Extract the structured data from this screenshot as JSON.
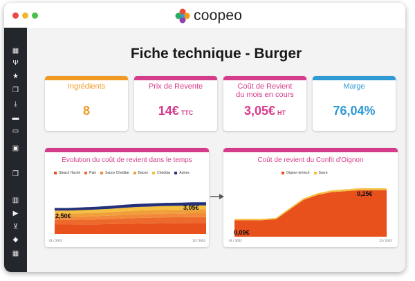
{
  "window": {
    "dots": [
      "#e94b4b",
      "#f0b830",
      "#4cbf4c"
    ]
  },
  "app": {
    "name": "coopeo",
    "logo_colors": [
      "#e74c3c",
      "#f39c12",
      "#8e44ad",
      "#27ae60",
      "#3498db"
    ]
  },
  "sidebar": {
    "items": [
      {
        "icon": "dashboard-icon",
        "glyph": "▦"
      },
      {
        "icon": "cutlery-icon",
        "glyph": "Ψ"
      },
      {
        "icon": "star-icon",
        "glyph": "★"
      },
      {
        "icon": "copy-icon",
        "glyph": "❐"
      },
      {
        "icon": "download-icon",
        "glyph": "⤓"
      },
      {
        "icon": "truck-icon",
        "glyph": "▬"
      },
      {
        "icon": "card-icon",
        "glyph": "▭"
      },
      {
        "icon": "document-icon",
        "glyph": "▣"
      },
      {
        "icon": "duplicate-icon",
        "glyph": "❒"
      },
      {
        "icon": "book-icon",
        "glyph": "▥"
      },
      {
        "icon": "play-icon",
        "glyph": "▶"
      },
      {
        "icon": "cart-icon",
        "glyph": "⊻"
      },
      {
        "icon": "tag-icon",
        "glyph": "◆"
      },
      {
        "icon": "calculator-icon",
        "glyph": "▦"
      }
    ]
  },
  "page": {
    "title": "Fiche technique - Burger"
  },
  "cards": [
    {
      "label": "Ingrédients",
      "value": "8",
      "unit": "",
      "color": "#f09a24"
    },
    {
      "label": "Prix de Revente",
      "value": "14€",
      "unit": "TTC",
      "color": "#d63c8c"
    },
    {
      "label": "Coût de Revient\ndu mois en cours",
      "value": "3,05€",
      "unit": "HT",
      "color": "#d63c8c"
    },
    {
      "label": "Marge",
      "value": "76,04%",
      "unit": "",
      "color": "#2f9ad6"
    }
  ],
  "chart_data": [
    {
      "type": "area",
      "title": "Evolution du coût de revient dans le temps",
      "legend": [
        "Steack Haché",
        "Pain",
        "Sauce Cheddar",
        "Bacon",
        "Cheddar",
        "Autres"
      ],
      "colors": [
        "#e8501c",
        "#ee6a2c",
        "#f28a3a",
        "#f0a03a",
        "#f5c040",
        "#23307a"
      ],
      "x_start_label": "01 / 2022",
      "x_end_label": "12 / 2022",
      "start_annotation": "2,50€",
      "end_annotation": "3,05€",
      "stacked": true,
      "x": [
        0,
        1,
        2,
        3,
        4,
        5,
        6,
        7,
        8,
        9,
        10,
        11
      ],
      "series": [
        {
          "name": "Steack Haché",
          "values": [
            0.9,
            0.9,
            0.91,
            0.92,
            0.94,
            0.97,
            1.0,
            1.02,
            1.04,
            1.05,
            1.06,
            1.06
          ]
        },
        {
          "name": "Pain",
          "values": [
            0.45,
            0.45,
            0.46,
            0.47,
            0.49,
            0.51,
            0.53,
            0.54,
            0.55,
            0.55,
            0.56,
            0.56
          ]
        },
        {
          "name": "Sauce Cheddar",
          "values": [
            0.3,
            0.3,
            0.31,
            0.32,
            0.33,
            0.35,
            0.36,
            0.37,
            0.37,
            0.38,
            0.38,
            0.38
          ]
        },
        {
          "name": "Bacon",
          "values": [
            0.3,
            0.3,
            0.31,
            0.32,
            0.33,
            0.35,
            0.36,
            0.36,
            0.37,
            0.37,
            0.38,
            0.38
          ]
        },
        {
          "name": "Cheddar",
          "values": [
            0.3,
            0.3,
            0.31,
            0.32,
            0.33,
            0.34,
            0.35,
            0.35,
            0.36,
            0.36,
            0.37,
            0.37
          ]
        },
        {
          "name": "Autres",
          "values": [
            0.25,
            0.25,
            0.26,
            0.27,
            0.28,
            0.29,
            0.29,
            0.3,
            0.3,
            0.3,
            0.3,
            0.3
          ]
        }
      ],
      "ylim": [
        0,
        3.6
      ]
    },
    {
      "type": "area",
      "title": "Coût de revient du Confit d'Oignon",
      "legend": [
        "Oignon émincé",
        "Sucre"
      ],
      "colors": [
        "#e8501c",
        "#f5c040"
      ],
      "x_start_label": "01 / 2022",
      "x_end_label": "12 / 2022",
      "start_annotation": "0,09€",
      "end_annotation": "0,25€",
      "stacked": true,
      "x": [
        0,
        1,
        2,
        3,
        4,
        5,
        6,
        7,
        8,
        9,
        10,
        11
      ],
      "series": [
        {
          "name": "Oignon émincé",
          "values": [
            0.085,
            0.085,
            0.085,
            0.09,
            0.14,
            0.19,
            0.215,
            0.23,
            0.235,
            0.24,
            0.24,
            0.24
          ]
        },
        {
          "name": "Sucre",
          "values": [
            0.007,
            0.007,
            0.007,
            0.007,
            0.008,
            0.008,
            0.009,
            0.009,
            0.009,
            0.01,
            0.01,
            0.01
          ]
        }
      ],
      "ylim": [
        0,
        0.3
      ]
    }
  ]
}
